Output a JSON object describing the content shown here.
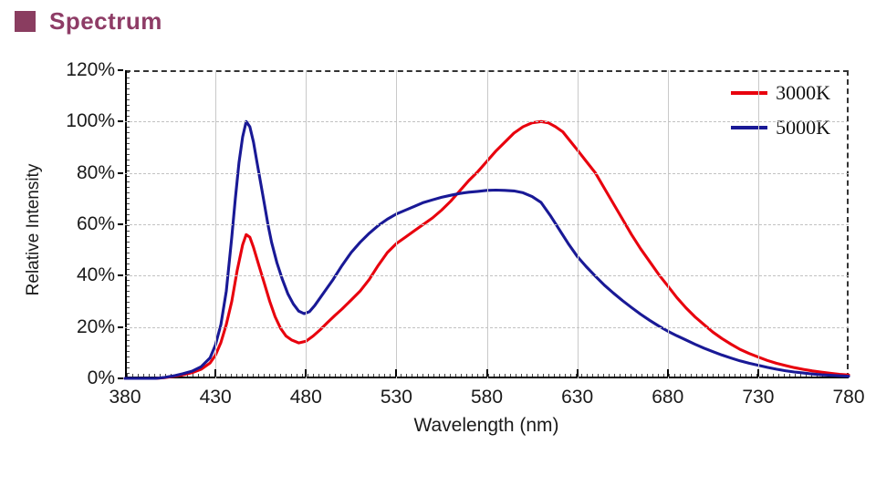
{
  "page": {
    "title": "Spectrum",
    "title_color": "#8e3c66",
    "bullet_color": "#8a3d60"
  },
  "chart_data": {
    "type": "line",
    "title": "Spectrum",
    "xlabel": "Wavelength (nm)",
    "ylabel": "Relative Intensity",
    "xlim": [
      380,
      780
    ],
    "ylim": [
      0,
      120
    ],
    "x_ticks": [
      380,
      430,
      480,
      530,
      580,
      630,
      680,
      730,
      780
    ],
    "x_tick_labels": [
      "380",
      "430",
      "480",
      "530",
      "580",
      "630",
      "680",
      "730",
      "780"
    ],
    "y_ticks": [
      0,
      20,
      40,
      60,
      80,
      100,
      120
    ],
    "y_tick_labels": [
      "0%",
      "20%",
      "40%",
      "60%",
      "80%",
      "100%",
      "120%"
    ],
    "grid": {
      "vertical": "solid-gray",
      "horizontal": "dashed-gray",
      "top_border": "dashed-black",
      "right_border": "dashed-black"
    },
    "legend_position": "top-right",
    "series": [
      {
        "name": "3000K",
        "color": "#e8000d",
        "points": [
          [
            380,
            0
          ],
          [
            390,
            0
          ],
          [
            397,
            0
          ],
          [
            402,
            0.3
          ],
          [
            407,
            0.8
          ],
          [
            412,
            1.4
          ],
          [
            417,
            2.2
          ],
          [
            422,
            3.5
          ],
          [
            427,
            6
          ],
          [
            430,
            9
          ],
          [
            433,
            14
          ],
          [
            436,
            21
          ],
          [
            439,
            30
          ],
          [
            442,
            42
          ],
          [
            445,
            52
          ],
          [
            447,
            56
          ],
          [
            449,
            55
          ],
          [
            451,
            51
          ],
          [
            454,
            44
          ],
          [
            457,
            37
          ],
          [
            460,
            30
          ],
          [
            463,
            24
          ],
          [
            466,
            19.5
          ],
          [
            469,
            16.5
          ],
          [
            472,
            15
          ],
          [
            476,
            13.8
          ],
          [
            480,
            14.5
          ],
          [
            484,
            16.5
          ],
          [
            488,
            19
          ],
          [
            492,
            21.8
          ],
          [
            496,
            24.5
          ],
          [
            500,
            27
          ],
          [
            505,
            30.5
          ],
          [
            510,
            34
          ],
          [
            515,
            38.5
          ],
          [
            520,
            44
          ],
          [
            525,
            49
          ],
          [
            530,
            52.5
          ],
          [
            535,
            55
          ],
          [
            540,
            57.5
          ],
          [
            545,
            60
          ],
          [
            550,
            62.5
          ],
          [
            555,
            65.5
          ],
          [
            560,
            69
          ],
          [
            565,
            73
          ],
          [
            570,
            77
          ],
          [
            575,
            80.5
          ],
          [
            580,
            84.5
          ],
          [
            585,
            88.5
          ],
          [
            590,
            92
          ],
          [
            595,
            95.5
          ],
          [
            600,
            98
          ],
          [
            605,
            99.5
          ],
          [
            610,
            100
          ],
          [
            614,
            99.5
          ],
          [
            618,
            98
          ],
          [
            622,
            96
          ],
          [
            626,
            92.5
          ],
          [
            630,
            89
          ],
          [
            635,
            84.5
          ],
          [
            640,
            80
          ],
          [
            645,
            74
          ],
          [
            650,
            68
          ],
          [
            655,
            62
          ],
          [
            660,
            56
          ],
          [
            665,
            50.5
          ],
          [
            670,
            45.5
          ],
          [
            675,
            40.5
          ],
          [
            680,
            36
          ],
          [
            685,
            31.5
          ],
          [
            690,
            27.5
          ],
          [
            695,
            24
          ],
          [
            700,
            21
          ],
          [
            705,
            18
          ],
          [
            710,
            15.5
          ],
          [
            715,
            13.3
          ],
          [
            720,
            11.3
          ],
          [
            725,
            9.7
          ],
          [
            730,
            8.3
          ],
          [
            735,
            7
          ],
          [
            740,
            5.9
          ],
          [
            745,
            5
          ],
          [
            750,
            4.2
          ],
          [
            755,
            3.5
          ],
          [
            760,
            2.9
          ],
          [
            765,
            2.4
          ],
          [
            770,
            2
          ],
          [
            775,
            1.6
          ],
          [
            780,
            1.3
          ]
        ]
      },
      {
        "name": "5000K",
        "color": "#191996",
        "points": [
          [
            380,
            0
          ],
          [
            390,
            0
          ],
          [
            397,
            0
          ],
          [
            402,
            0.4
          ],
          [
            407,
            1
          ],
          [
            412,
            1.8
          ],
          [
            417,
            2.8
          ],
          [
            422,
            4.5
          ],
          [
            427,
            8
          ],
          [
            430,
            13
          ],
          [
            433,
            21
          ],
          [
            436,
            34
          ],
          [
            439,
            55
          ],
          [
            441,
            70
          ],
          [
            443,
            84
          ],
          [
            445,
            94
          ],
          [
            447,
            100
          ],
          [
            449,
            98
          ],
          [
            451,
            92
          ],
          [
            453,
            84
          ],
          [
            455,
            76
          ],
          [
            457,
            68
          ],
          [
            459,
            60
          ],
          [
            461,
            53
          ],
          [
            464,
            45
          ],
          [
            467,
            38.5
          ],
          [
            470,
            33
          ],
          [
            473,
            29
          ],
          [
            476,
            26.2
          ],
          [
            479,
            25.2
          ],
          [
            482,
            26
          ],
          [
            485,
            28.5
          ],
          [
            490,
            33.5
          ],
          [
            495,
            38.5
          ],
          [
            500,
            44
          ],
          [
            505,
            49
          ],
          [
            510,
            53
          ],
          [
            515,
            56.5
          ],
          [
            520,
            59.5
          ],
          [
            525,
            62
          ],
          [
            530,
            64
          ],
          [
            535,
            65.5
          ],
          [
            540,
            67
          ],
          [
            545,
            68.5
          ],
          [
            550,
            69.5
          ],
          [
            555,
            70.5
          ],
          [
            560,
            71.3
          ],
          [
            565,
            72
          ],
          [
            570,
            72.5
          ],
          [
            575,
            72.8
          ],
          [
            580,
            73.2
          ],
          [
            585,
            73.3
          ],
          [
            590,
            73.2
          ],
          [
            595,
            73
          ],
          [
            600,
            72.3
          ],
          [
            605,
            70.8
          ],
          [
            610,
            68.5
          ],
          [
            615,
            63.5
          ],
          [
            620,
            58
          ],
          [
            625,
            52.5
          ],
          [
            630,
            47.5
          ],
          [
            635,
            43.5
          ],
          [
            640,
            39.8
          ],
          [
            645,
            36.3
          ],
          [
            650,
            33.2
          ],
          [
            655,
            30.3
          ],
          [
            660,
            27.6
          ],
          [
            665,
            25
          ],
          [
            670,
            22.6
          ],
          [
            675,
            20.4
          ],
          [
            680,
            18.4
          ],
          [
            685,
            16.6
          ],
          [
            690,
            15
          ],
          [
            695,
            13.3
          ],
          [
            700,
            11.8
          ],
          [
            705,
            10.4
          ],
          [
            710,
            9.1
          ],
          [
            715,
            7.9
          ],
          [
            720,
            6.8
          ],
          [
            725,
            5.9
          ],
          [
            730,
            5.1
          ],
          [
            735,
            4.3
          ],
          [
            740,
            3.6
          ],
          [
            745,
            3
          ],
          [
            750,
            2.5
          ],
          [
            755,
            2.1
          ],
          [
            760,
            1.7
          ],
          [
            765,
            1.4
          ],
          [
            770,
            1.2
          ],
          [
            775,
            1
          ],
          [
            780,
            0.8
          ]
        ]
      }
    ]
  }
}
